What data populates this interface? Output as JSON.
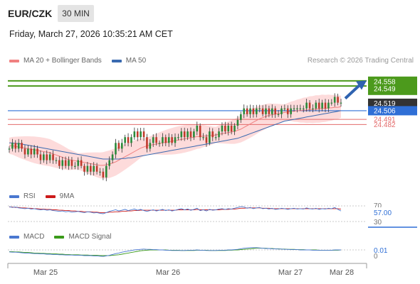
{
  "header": {
    "symbol": "EUR/CZK",
    "timeframe": "30 MIN",
    "datetime": "Friday, March 27, 2026 10:35:21 AM CET"
  },
  "legend": {
    "ma20": "MA 20 + Bollinger Bands",
    "ma50": "MA 50",
    "copyright": "Research © 2026 Trading Central",
    "rsi": "RSI",
    "rsi_ma": "9MA",
    "macd": "MACD",
    "macd_signal": "MACD Signal"
  },
  "colors": {
    "up": "#2a8a3a",
    "down": "#c0392b",
    "ma20": "#f08080",
    "bands": "#fdd5d5",
    "ma50": "#3a6ab0",
    "resistance": "#4c9a1c",
    "support": "#2f6fd6",
    "level_red": "#e36b6b",
    "current": "#333333",
    "arrow": "#2f63b0"
  },
  "chart_data": [
    {
      "type": "candlestick",
      "title": "EUR/CZK 30 MIN",
      "x_ticks": [
        "Mar 25",
        "Mar 26",
        "Mar 27",
        "Mar 28"
      ],
      "ylim": [
        24.38,
        24.58
      ],
      "levels": [
        {
          "label": "24.558",
          "value": 24.558,
          "kind": "resistance"
        },
        {
          "label": "24.549",
          "value": 24.549,
          "kind": "resistance"
        },
        {
          "label": "24.519",
          "value": 24.519,
          "kind": "current"
        },
        {
          "label": "24.506",
          "value": 24.506,
          "kind": "support"
        },
        {
          "label": "24.491",
          "value": 24.491,
          "kind": "level"
        },
        {
          "label": "24.482",
          "value": 24.482,
          "kind": "level"
        }
      ],
      "close": [
        24.44,
        24.45,
        24.44,
        24.45,
        24.44,
        24.43,
        24.44,
        24.43,
        24.44,
        24.43,
        24.42,
        24.43,
        24.42,
        24.43,
        24.42,
        24.42,
        24.41,
        24.42,
        24.41,
        24.42,
        24.41,
        24.41,
        24.42,
        24.41,
        24.4,
        24.41,
        24.4,
        24.41,
        24.4,
        24.4,
        24.39,
        24.41,
        24.42,
        24.43,
        24.45,
        24.44,
        24.45,
        24.46,
        24.45,
        24.46,
        24.47,
        24.46,
        24.47,
        24.46,
        24.44,
        24.45,
        24.46,
        24.45,
        24.45,
        24.46,
        24.45,
        24.46,
        24.45,
        24.46,
        24.46,
        24.47,
        24.46,
        24.47,
        24.46,
        24.47,
        24.48,
        24.46,
        24.46,
        24.45,
        24.47,
        24.46,
        24.46,
        24.47,
        24.48,
        24.47,
        24.48,
        24.47,
        24.48,
        24.49,
        24.5,
        24.51,
        24.5,
        24.51,
        24.5,
        24.51,
        24.51,
        24.5,
        24.51,
        24.5,
        24.51,
        24.5,
        24.5,
        24.51,
        24.51,
        24.5,
        24.51,
        24.51,
        24.51,
        24.51,
        24.51,
        24.52,
        24.51,
        24.51,
        24.52,
        24.51,
        24.52,
        24.51,
        24.52,
        24.52,
        24.53,
        24.52,
        24.52
      ],
      "ma20": [
        24.445,
        24.445,
        24.444,
        24.443,
        24.442,
        24.441,
        24.44,
        24.439,
        24.438,
        24.437,
        24.436,
        24.435,
        24.434,
        24.433,
        24.431,
        24.429,
        24.427,
        24.425,
        24.423,
        24.421,
        24.42,
        24.419,
        24.418,
        24.417,
        24.416,
        24.415,
        24.414,
        24.413,
        24.412,
        24.411,
        24.411,
        24.412,
        24.413,
        24.415,
        24.417,
        24.42,
        24.423,
        24.426,
        24.429,
        24.432,
        24.435,
        24.438,
        24.441,
        24.443,
        24.445,
        24.446,
        24.447,
        24.448,
        24.449,
        24.45,
        24.451,
        24.452,
        24.453,
        24.454,
        24.455,
        24.456,
        24.457,
        24.458,
        24.459,
        24.46,
        24.461,
        24.461,
        24.462,
        24.462,
        24.463,
        24.463,
        24.464,
        24.465,
        24.466,
        24.467,
        24.468,
        24.469,
        24.47,
        24.472,
        24.474,
        24.477,
        24.48,
        24.483,
        24.486,
        24.489,
        24.492,
        24.494,
        24.496,
        24.498,
        24.499,
        24.5,
        24.501,
        24.502,
        24.503,
        24.504,
        24.505,
        24.505,
        24.506,
        24.506,
        24.507,
        24.507,
        24.508,
        24.508,
        24.509,
        24.509,
        24.51,
        24.51,
        24.511,
        24.511,
        24.512,
        24.512,
        24.513
      ],
      "ma50": [
        24.45,
        24.45,
        24.449,
        24.449,
        24.448,
        24.447,
        24.446,
        24.445,
        24.444,
        24.443,
        24.442,
        24.441,
        24.44,
        24.439,
        24.438,
        24.437,
        24.436,
        24.435,
        24.434,
        24.433,
        24.432,
        24.431,
        24.43,
        24.429,
        24.428,
        24.427,
        24.426,
        24.425,
        24.424,
        24.423,
        24.422,
        24.422,
        24.422,
        24.422,
        24.422,
        24.422,
        24.423,
        24.423,
        24.424,
        24.424,
        24.425,
        24.426,
        24.427,
        24.428,
        24.429,
        24.43,
        24.431,
        24.432,
        24.433,
        24.434,
        24.435,
        24.436,
        24.437,
        24.438,
        24.439,
        24.44,
        24.441,
        24.442,
        24.443,
        24.444,
        24.445,
        24.446,
        24.447,
        24.448,
        24.449,
        24.45,
        24.451,
        24.452,
        24.453,
        24.454,
        24.455,
        24.456,
        24.457,
        24.458,
        24.46,
        24.462,
        24.464,
        24.466,
        24.468,
        24.47,
        24.472,
        24.474,
        24.476,
        24.478,
        24.48,
        24.482,
        24.484,
        24.486,
        24.488,
        24.489,
        24.49,
        24.491,
        24.492,
        24.493,
        24.494,
        24.495,
        24.496,
        24.497,
        24.498,
        24.499,
        24.5,
        24.501,
        24.502,
        24.503,
        24.504,
        24.505,
        24.506
      ]
    },
    {
      "type": "line",
      "title": "RSI",
      "ylim": [
        30,
        70
      ],
      "y_ticks": [
        "70",
        "30"
      ],
      "current_label": "57.00",
      "series_names": [
        "RSI",
        "9MA"
      ],
      "rsi": [
        68,
        66,
        67,
        65,
        64,
        63,
        64,
        62,
        63,
        61,
        60,
        61,
        59,
        60,
        58,
        57,
        56,
        57,
        55,
        56,
        54,
        55,
        56,
        54,
        53,
        55,
        54,
        52,
        53,
        51,
        50,
        53,
        56,
        58,
        60,
        57,
        59,
        61,
        58,
        60,
        62,
        59,
        61,
        58,
        56,
        58,
        60,
        57,
        59,
        61,
        58,
        60,
        57,
        59,
        61,
        63,
        60,
        62,
        59,
        61,
        64,
        58,
        60,
        57,
        61,
        59,
        60,
        62,
        63,
        61,
        63,
        62,
        64,
        66,
        68,
        67,
        64,
        66,
        63,
        65,
        66,
        63,
        64,
        62,
        64,
        61,
        62,
        64,
        63,
        61,
        63,
        64,
        62,
        63,
        62,
        65,
        63,
        62,
        64,
        61,
        63,
        62,
        64,
        63,
        66,
        61,
        57
      ],
      "rsi_ma": [
        67,
        67,
        66,
        66,
        65,
        65,
        64,
        64,
        63,
        63,
        62,
        62,
        61,
        61,
        60,
        60,
        59,
        59,
        58,
        58,
        57,
        57,
        56,
        56,
        55,
        55,
        55,
        54,
        54,
        53,
        53,
        53,
        54,
        54,
        55,
        55,
        56,
        56,
        57,
        57,
        58,
        58,
        59,
        59,
        59,
        59,
        59,
        59,
        59,
        59,
        59,
        59,
        59,
        59,
        60,
        60,
        60,
        60,
        60,
        60,
        61,
        60,
        60,
        60,
        60,
        60,
        60,
        60,
        61,
        61,
        61,
        62,
        62,
        63,
        64,
        64,
        65,
        65,
        65,
        65,
        65,
        64,
        64,
        64,
        63,
        63,
        63,
        63,
        63,
        63,
        63,
        63,
        63,
        63,
        63,
        63,
        63,
        63,
        63,
        63,
        63,
        63,
        63,
        63,
        63,
        63,
        62
      ]
    },
    {
      "type": "line",
      "title": "MACD",
      "ylim": [
        -0.02,
        0.03
      ],
      "y_ticks": [
        "0"
      ],
      "current_label": "0.01",
      "series_names": [
        "MACD",
        "MACD Signal"
      ],
      "macd": [
        0.003,
        0.002,
        0.002,
        0.001,
        0.0,
        -0.001,
        -0.001,
        -0.002,
        -0.003,
        -0.003,
        -0.004,
        -0.004,
        -0.005,
        -0.005,
        -0.006,
        -0.006,
        -0.007,
        -0.007,
        -0.008,
        -0.008,
        -0.008,
        -0.009,
        -0.009,
        -0.009,
        -0.01,
        -0.01,
        -0.01,
        -0.011,
        -0.011,
        -0.012,
        -0.013,
        -0.011,
        -0.009,
        -0.006,
        -0.003,
        -0.001,
        0.002,
        0.004,
        0.006,
        0.008,
        0.01,
        0.011,
        0.012,
        0.013,
        0.012,
        0.012,
        0.011,
        0.011,
        0.01,
        0.01,
        0.009,
        0.009,
        0.008,
        0.008,
        0.008,
        0.008,
        0.008,
        0.009,
        0.009,
        0.009,
        0.01,
        0.009,
        0.009,
        0.008,
        0.008,
        0.008,
        0.008,
        0.009,
        0.009,
        0.009,
        0.01,
        0.01,
        0.011,
        0.012,
        0.014,
        0.016,
        0.017,
        0.018,
        0.018,
        0.018,
        0.017,
        0.016,
        0.015,
        0.015,
        0.014,
        0.014,
        0.013,
        0.013,
        0.012,
        0.012,
        0.011,
        0.011,
        0.011,
        0.01,
        0.01,
        0.01,
        0.01,
        0.009,
        0.009,
        0.009,
        0.009,
        0.009,
        0.009,
        0.009,
        0.01,
        0.01,
        0.01
      ],
      "signal": [
        0.004,
        0.004,
        0.003,
        0.003,
        0.002,
        0.001,
        0.001,
        0.0,
        -0.001,
        -0.001,
        -0.002,
        -0.002,
        -0.003,
        -0.003,
        -0.004,
        -0.004,
        -0.005,
        -0.005,
        -0.006,
        -0.006,
        -0.007,
        -0.007,
        -0.007,
        -0.008,
        -0.008,
        -0.008,
        -0.009,
        -0.009,
        -0.009,
        -0.01,
        -0.01,
        -0.01,
        -0.01,
        -0.009,
        -0.008,
        -0.007,
        -0.005,
        -0.003,
        -0.001,
        0.001,
        0.003,
        0.005,
        0.007,
        0.008,
        0.009,
        0.01,
        0.01,
        0.01,
        0.01,
        0.01,
        0.01,
        0.009,
        0.009,
        0.009,
        0.009,
        0.008,
        0.008,
        0.008,
        0.008,
        0.008,
        0.009,
        0.009,
        0.009,
        0.009,
        0.008,
        0.008,
        0.008,
        0.008,
        0.008,
        0.008,
        0.009,
        0.009,
        0.01,
        0.01,
        0.011,
        0.012,
        0.013,
        0.014,
        0.015,
        0.016,
        0.016,
        0.016,
        0.016,
        0.015,
        0.015,
        0.014,
        0.014,
        0.013,
        0.013,
        0.012,
        0.012,
        0.012,
        0.011,
        0.011,
        0.011,
        0.01,
        0.01,
        0.01,
        0.01,
        0.009,
        0.009,
        0.009,
        0.009,
        0.009,
        0.009,
        0.009,
        0.01
      ]
    }
  ]
}
